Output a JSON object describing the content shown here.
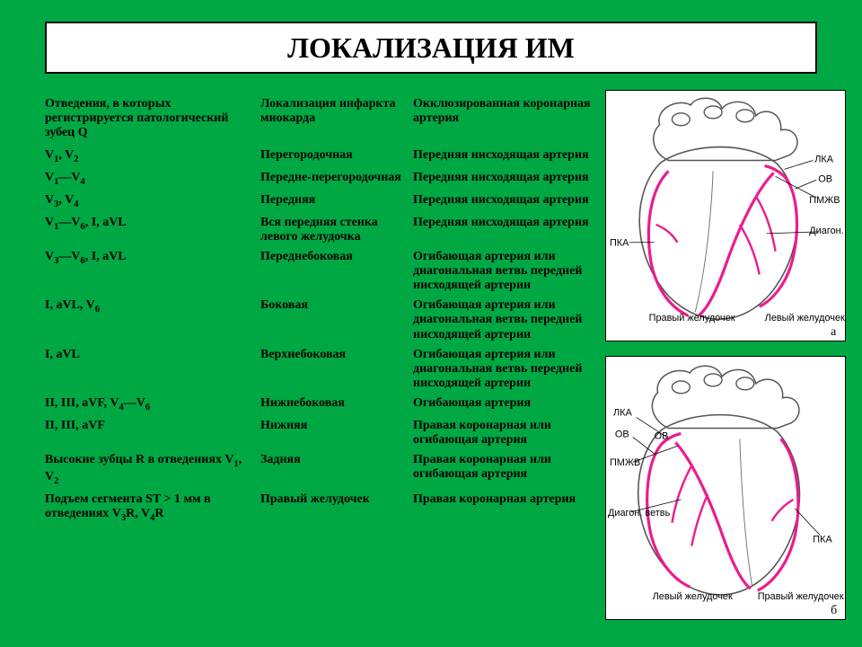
{
  "colors": {
    "background": "#00a843",
    "panel": "#ffffff",
    "text": "#000000",
    "artery": "#ec1b8e",
    "heart_outline": "#444444"
  },
  "title": "ЛОКАЛИЗАЦИЯ ИМ",
  "table": {
    "headers": [
      "Отведения, в которых регистрируется патологический зубец Q",
      "Локализация инфаркта миокарда",
      "Окклюзированная коронарная артерия"
    ],
    "rows": [
      {
        "leads": "V₁, V₂",
        "loc": "Перегородочная",
        "artery": "Передняя нисходящая артерия"
      },
      {
        "leads": "V₁—V₄",
        "loc": "Передне-перегородочная",
        "artery": "Передняя нисходящая артерия"
      },
      {
        "leads": "V₃, V₄",
        "loc": "Передняя",
        "artery": "Передняя нисходящая артерия"
      },
      {
        "leads": "V₁—V₆, I, aVL",
        "loc": "Вся передняя стенка левого желудочка",
        "artery": "Передняя нисходящая артерия"
      },
      {
        "leads": "V₃—V₆, I, aVL",
        "loc": "Переднебоковая",
        "artery": "Огибающая артерия или диагональная ветвь передней нисходящей артерии"
      },
      {
        "leads": "I, aVL, V₆",
        "loc": "Боковая",
        "artery": "Огибающая артерия или диагональная ветвь передней нисходящей артерии"
      },
      {
        "leads": "I, aVL",
        "loc": "Верхнебоковая",
        "artery": "Огибающая артерия или диагональная ветвь передней нисходящей артерии"
      },
      {
        "leads": "II, III, aVF, V₄—V₆",
        "loc": "Нижнебоковая",
        "artery": "Огибающая артерия"
      },
      {
        "leads": "II, III, aVF",
        "loc": "Нижняя",
        "artery": "Правая коронарная или огибающая артерия"
      },
      {
        "leads": "Высокие зубцы R в отведениях V₁, V₂",
        "loc": "Задняя",
        "artery": "Правая коронарная или огибающая артерия"
      },
      {
        "leads": "Подъем сегмента ST > 1 мм в отведениях V₃R, V₄R",
        "loc": "Правый желудочек",
        "artery": "Правая коронарная артерия"
      }
    ]
  },
  "figures": {
    "a": {
      "letter": "а",
      "labels": {
        "lka": "ЛКА",
        "ov": "ОВ",
        "pmzv": "ПМЖВ",
        "diag": "Диагон. ветвь",
        "pka": "ПКА",
        "rv": "Правый желудочек",
        "lv": "Левый желудочек"
      }
    },
    "b": {
      "letter": "б",
      "labels": {
        "lka": "ЛКА",
        "ov": "ОВ",
        "pmzv": "ПМЖВ",
        "diag": "Диагон. ветвь",
        "pka": "ПКА",
        "rv": "Правый желудочек",
        "lv": "Левый желудочек"
      }
    }
  }
}
